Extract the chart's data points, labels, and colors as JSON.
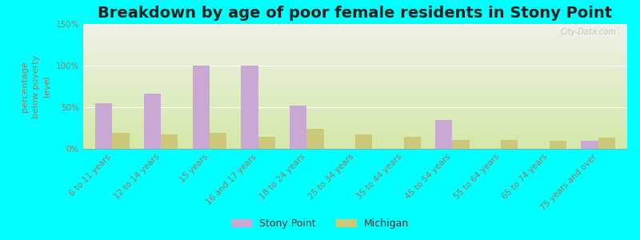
{
  "title": "Breakdown by age of poor female residents in Stony Point",
  "ylabel": "percentage\nbelow poverty\nlevel",
  "categories": [
    "6 to 11 years",
    "12 to 14 years",
    "15 years",
    "16 and 17 years",
    "18 to 24 years",
    "25 to 34 years",
    "35 to 44 years",
    "45 to 54 years",
    "55 to 64 years",
    "65 to 74 years",
    "75 years and over"
  ],
  "stony_point": [
    55,
    66,
    100,
    100,
    52,
    0,
    0,
    35,
    0,
    0,
    10
  ],
  "michigan": [
    19,
    17,
    19,
    14,
    24,
    17,
    14,
    11,
    11,
    10,
    13
  ],
  "stony_point_color": "#c9a8d4",
  "michigan_color": "#ccc87a",
  "background_outer": "#00ffff",
  "ylim": [
    0,
    150
  ],
  "yticks": [
    0,
    50,
    100,
    150
  ],
  "yticklabels": [
    "0%",
    "50%",
    "100%",
    "150%"
  ],
  "bar_width": 0.35,
  "title_fontsize": 14,
  "axis_label_fontsize": 8,
  "tick_fontsize": 7.5,
  "legend_fontsize": 9,
  "watermark": "City-Data.com"
}
